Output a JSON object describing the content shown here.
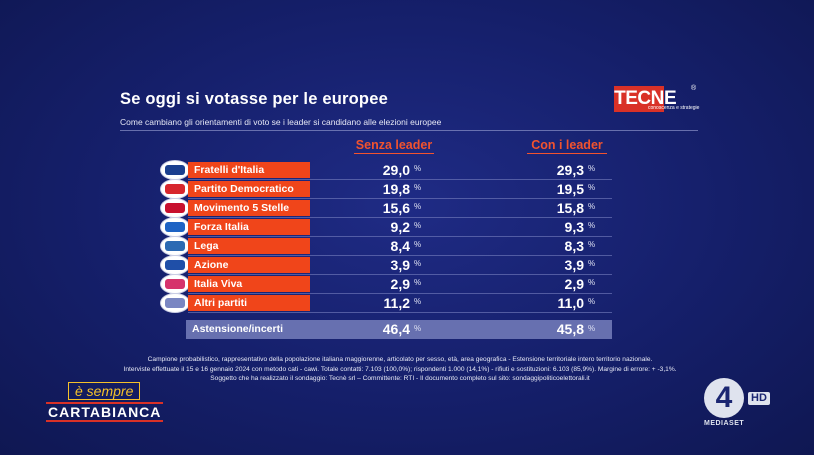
{
  "header": {
    "title": "Se oggi si votasse per le europee",
    "subtitle": "Come cambiano gli orientamenti di voto se i leader si candidano alle elezioni europee"
  },
  "logo": {
    "box_text": "TECN",
    "rest_text": "E",
    "tagline": "conoscenza e strategie",
    "reg": "®"
  },
  "chart_data": {
    "type": "table",
    "columns": [
      "Senza leader",
      "Con i leader"
    ],
    "unit": "%",
    "rows": [
      {
        "party": "Fratelli d'Italia",
        "senza": "29,0",
        "con": "29,3",
        "badge_color": "#1b3f8f"
      },
      {
        "party": "Partito Democratico",
        "senza": "19,8",
        "con": "19,5",
        "badge_color": "#d7262d"
      },
      {
        "party": "Movimento 5 Stelle",
        "senza": "15,6",
        "con": "15,8",
        "badge_color": "#c8102e"
      },
      {
        "party": "Forza Italia",
        "senza": "9,2",
        "con": "9,3",
        "badge_color": "#1e63c4"
      },
      {
        "party": "Lega",
        "senza": "8,4",
        "con": "8,3",
        "badge_color": "#2c6ab3"
      },
      {
        "party": "Azione",
        "senza": "3,9",
        "con": "3,9",
        "badge_color": "#1f4fa8"
      },
      {
        "party": "Italia Viva",
        "senza": "2,9",
        "con": "2,9",
        "badge_color": "#d6336c"
      },
      {
        "party": "Altri partiti",
        "senza": "11,2",
        "con": "11,0",
        "badge_color": "#7a86c2"
      }
    ],
    "abstention": {
      "label": "Astensione/incerti",
      "senza": "46,4",
      "con": "45,8"
    }
  },
  "notes": [
    "Campione probabilistico, rappresentativo della popolazione italiana maggiorenne, articolato per sesso, età, area geografica - Estensione territoriale intero territorio nazionale.",
    "Interviste effettuate il 15  e 16 gennaio 2024 con metodo cati - cawi. Totale contatti: 7.103 (100,0%); rispondenti 1.000 (14,1%) - rifiuti e sostituzioni: 6.103 (85,9%). Margine di errore: + -3,1%.",
    "Soggetto che ha realizzato il sondaggio: Tecnè srl – Committente: RTI - Il documento completo sul sito: sondaggipoliticoelettorali.it"
  ],
  "branding": {
    "show_line1": "è sempre",
    "show_line2": "CARTABIANCA",
    "channel_number": "4",
    "channel_hd": "HD",
    "channel_name": "MEDIASET"
  }
}
